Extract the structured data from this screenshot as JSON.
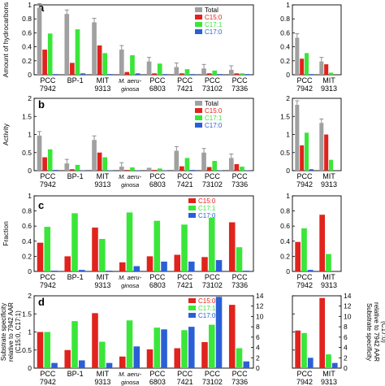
{
  "colors": {
    "total": "#a0a0a0",
    "c15": "#e0231c",
    "c17_1": "#39e639",
    "c17_0": "#2a5fd6",
    "axis": "#000000"
  },
  "strains_main": [
    {
      "top": "PCC",
      "bottom": "7942"
    },
    {
      "top": "BP-1",
      "bottom": ""
    },
    {
      "top": "MIT",
      "bottom": "9313"
    },
    {
      "top": "M. aeru-",
      "bottom": "ginosa"
    },
    {
      "top": "PCC",
      "bottom": "6803"
    },
    {
      "top": "PCC",
      "bottom": "7421"
    },
    {
      "top": "PCC",
      "bottom": "73102"
    },
    {
      "top": "PCC",
      "bottom": "7336"
    }
  ],
  "strains_side": [
    {
      "top": "PCC",
      "bottom": "7942"
    },
    {
      "top": "MIT",
      "bottom": "9313"
    }
  ],
  "chart_data": [
    {
      "panel": "a",
      "type": "bar",
      "ylabel": "Amount of hydrocarbons",
      "ylim": [
        0,
        1
      ],
      "yticks": [
        "0",
        "0.2",
        "0.4",
        "0.6",
        "0.8",
        "1"
      ],
      "legend": [
        "Total",
        "C15:0",
        "C17:1",
        "C17:0"
      ],
      "series": [
        {
          "name": "Total",
          "values": [
            0.96,
            0.87,
            0.75,
            0.36,
            0.19,
            0.11,
            0.09,
            0.07
          ]
        },
        {
          "name": "C15:0",
          "values": [
            0.36,
            0.17,
            0.42,
            0.04,
            0.02,
            0.02,
            0.02,
            0.02
          ]
        },
        {
          "name": "C17:1",
          "values": [
            0.59,
            0.65,
            0.31,
            0.28,
            0.16,
            0.08,
            0.06,
            0.02
          ]
        },
        {
          "name": "C17:0",
          "values": [
            0.01,
            0.02,
            0.01,
            0.02,
            0.01,
            0.01,
            0.01,
            0.01
          ]
        }
      ],
      "side": {
        "series": [
          {
            "name": "Total",
            "values": [
              0.53,
              0.19
            ]
          },
          {
            "name": "C15:0",
            "values": [
              0.23,
              0.15
            ]
          },
          {
            "name": "C17:1",
            "values": [
              0.31,
              0.03
            ]
          },
          {
            "name": "C17:0",
            "values": [
              0.01,
              0.0
            ]
          }
        ]
      }
    },
    {
      "panel": "b",
      "type": "bar",
      "ylabel": "Activity",
      "ylim": [
        0,
        2
      ],
      "yticks": [
        "0",
        "0.5",
        "1",
        "1.5",
        "2"
      ],
      "legend": [
        "Total",
        "C15:0",
        "C17:1",
        "C17:0"
      ],
      "series": [
        {
          "name": "Total",
          "values": [
            0.97,
            0.2,
            0.85,
            0.11,
            0.08,
            0.55,
            0.5,
            0.35
          ]
        },
        {
          "name": "C15:0",
          "values": [
            0.37,
            0.04,
            0.5,
            0.02,
            0.02,
            0.12,
            0.1,
            0.18
          ]
        },
        {
          "name": "C17:1",
          "values": [
            0.59,
            0.16,
            0.37,
            0.09,
            0.06,
            0.35,
            0.27,
            0.11
          ]
        },
        {
          "name": "C17:0",
          "values": [
            0.02,
            0.01,
            0.01,
            0.01,
            0.01,
            0.02,
            0.01,
            0.01
          ]
        }
      ],
      "side": {
        "ylim": [
          0,
          2
        ],
        "yticks": [
          "0",
          "0.5",
          "1",
          "1.5",
          "2"
        ],
        "series": [
          {
            "name": "Total",
            "values": [
              1.82,
              1.32
            ]
          },
          {
            "name": "C15:0",
            "values": [
              0.7,
              1.0
            ]
          },
          {
            "name": "C17:1",
            "values": [
              1.05,
              0.3
            ]
          },
          {
            "name": "C17:0",
            "values": [
              0.04,
              0.0
            ]
          }
        ]
      }
    },
    {
      "panel": "c",
      "type": "bar",
      "ylabel": "Fraction",
      "ylim": [
        0,
        1
      ],
      "yticks": [
        "0",
        "0.2",
        "0.4",
        "0.6",
        "0.8",
        "1"
      ],
      "legend": [
        "C15:0",
        "C17:1",
        "C17:0"
      ],
      "series": [
        {
          "name": "C15:0",
          "values": [
            0.38,
            0.2,
            0.58,
            0.12,
            0.2,
            0.22,
            0.19,
            0.65
          ]
        },
        {
          "name": "C17:1",
          "values": [
            0.59,
            0.77,
            0.43,
            0.78,
            0.67,
            0.62,
            0.71,
            0.32
          ]
        },
        {
          "name": "C17:0",
          "values": [
            0.01,
            0.02,
            0.01,
            0.07,
            0.13,
            0.13,
            0.15,
            0.01
          ]
        }
      ],
      "side": {
        "series": [
          {
            "name": "C15:0",
            "values": [
              0.39,
              0.75
            ]
          },
          {
            "name": "C17:1",
            "values": [
              0.57,
              0.23
            ]
          },
          {
            "name": "C17:0",
            "values": [
              0.02,
              0.0
            ]
          }
        ]
      }
    },
    {
      "panel": "d",
      "type": "bar",
      "ylabel": [
        "Substrate specificity",
        "relative to 7942 AAR",
        "(C15:0, C17:1)"
      ],
      "ylabel_right": [
        "Substrate specificity",
        "relative to 7942 AAR",
        "(C17:0)"
      ],
      "ylim": [
        0,
        2
      ],
      "yticks": [
        "0",
        "0.5",
        "1",
        "1.5",
        "2"
      ],
      "ylim_right": [
        0,
        14
      ],
      "yticks_right": [
        "0",
        "2",
        "4",
        "6",
        "8",
        "10",
        "12",
        "14"
      ],
      "legend": [
        "C15:0",
        "C17:1",
        "C17:0"
      ],
      "series": [
        {
          "name": "C15:0",
          "values": [
            1.0,
            0.5,
            1.52,
            0.32,
            0.52,
            0.55,
            0.72,
            1.75
          ]
        },
        {
          "name": "C17:1",
          "values": [
            1.0,
            1.3,
            0.73,
            1.32,
            1.12,
            1.05,
            1.2,
            0.55
          ]
        },
        {
          "name": "C17:0",
          "values": [
            1.0,
            1.5,
            1.0,
            4.2,
            7.5,
            8.0,
            13.8,
            1.3
          ],
          "axis": "right"
        }
      ],
      "side": {
        "ylim_right": [
          0,
          14
        ],
        "yticks_right": [
          "0",
          "2",
          "4",
          "6",
          "8",
          "10",
          "12",
          "14"
        ],
        "series": [
          {
            "name": "C15:0",
            "values": [
              1.04,
              1.94
            ]
          },
          {
            "name": "C17:1",
            "values": [
              0.97,
              0.38
            ]
          },
          {
            "name": "C17:0",
            "values": [
              2.0,
              1.0
            ],
            "axis": "right"
          }
        ]
      }
    }
  ]
}
